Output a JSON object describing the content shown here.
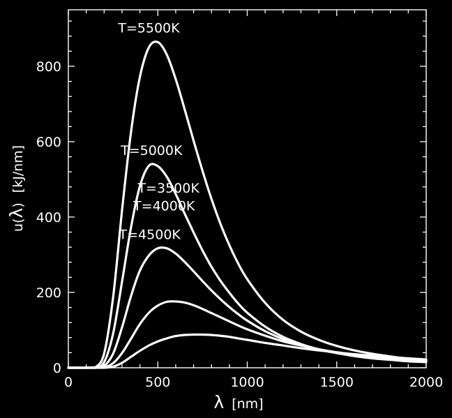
{
  "chart_data": {
    "type": "line",
    "xlabel": {
      "symbol": "λ",
      "unit": "[nm]"
    },
    "ylabel": {
      "prefix": "u(",
      "symbol": "λ",
      "suffix": ")",
      "unit": "[kJ/nm]"
    },
    "xlim": [
      0,
      2000
    ],
    "ylim": [
      0,
      950
    ],
    "x_ticks": [
      0,
      500,
      1000,
      1500,
      2000
    ],
    "y_ticks": [
      0,
      200,
      400,
      600,
      800
    ],
    "grid": false,
    "colors": {
      "background": "#000000",
      "foreground": "#ffffff"
    },
    "x": [
      0,
      100,
      150,
      200,
      250,
      300,
      350,
      400,
      450,
      500,
      550,
      600,
      650,
      700,
      750,
      800,
      850,
      900,
      950,
      1000,
      1100,
      1200,
      1300,
      1400,
      1500,
      1600,
      1700,
      1800,
      1900,
      2000
    ],
    "series": [
      {
        "name": "T=5500K",
        "label_at": [
          450,
          890
        ],
        "values": [
          0,
          0,
          1,
          38,
          186,
          417,
          625,
          772,
          850,
          864,
          831,
          766,
          686,
          603,
          522,
          448,
          382,
          325,
          276,
          235,
          172,
          127,
          96,
          74,
          58,
          46,
          37,
          30,
          24,
          20
        ]
      },
      {
        "name": "T=5000K",
        "label_at": [
          465,
          565
        ],
        "values": [
          0,
          0,
          0,
          15,
          90,
          228,
          372,
          482,
          536,
          535,
          507,
          461,
          409,
          359,
          311,
          268,
          231,
          199,
          170,
          146,
          109,
          82,
          63,
          49,
          39,
          31,
          25,
          21,
          17,
          15
        ]
      },
      {
        "name": "T=4500K",
        "label_at": [
          455,
          342
        ],
        "values": [
          0,
          0,
          0,
          5,
          37,
          107,
          190,
          258,
          298,
          317,
          317,
          303,
          281,
          256,
          230,
          205,
          182,
          161,
          142,
          125,
          97,
          76,
          60,
          48,
          39,
          32,
          26,
          22,
          18,
          16
        ]
      },
      {
        "name": "T=4000K",
        "label_at": [
          535,
          418
        ],
        "values": [
          0,
          0,
          0,
          1,
          12,
          39,
          77,
          116,
          146,
          165,
          175,
          176,
          173,
          166,
          156,
          145,
          134,
          123,
          112,
          102,
          85,
          70,
          59,
          49,
          41,
          35,
          30,
          26,
          22,
          19
        ]
      },
      {
        "name": "T=3500K",
        "label_at": [
          560,
          465
        ],
        "values": [
          0,
          0,
          0,
          0,
          3,
          13,
          29,
          45,
          59,
          70,
          78,
          84,
          87,
          88,
          88,
          87,
          85,
          82,
          78,
          74,
          66,
          59,
          52,
          46,
          41,
          36,
          32,
          28,
          25,
          22
        ]
      }
    ]
  }
}
